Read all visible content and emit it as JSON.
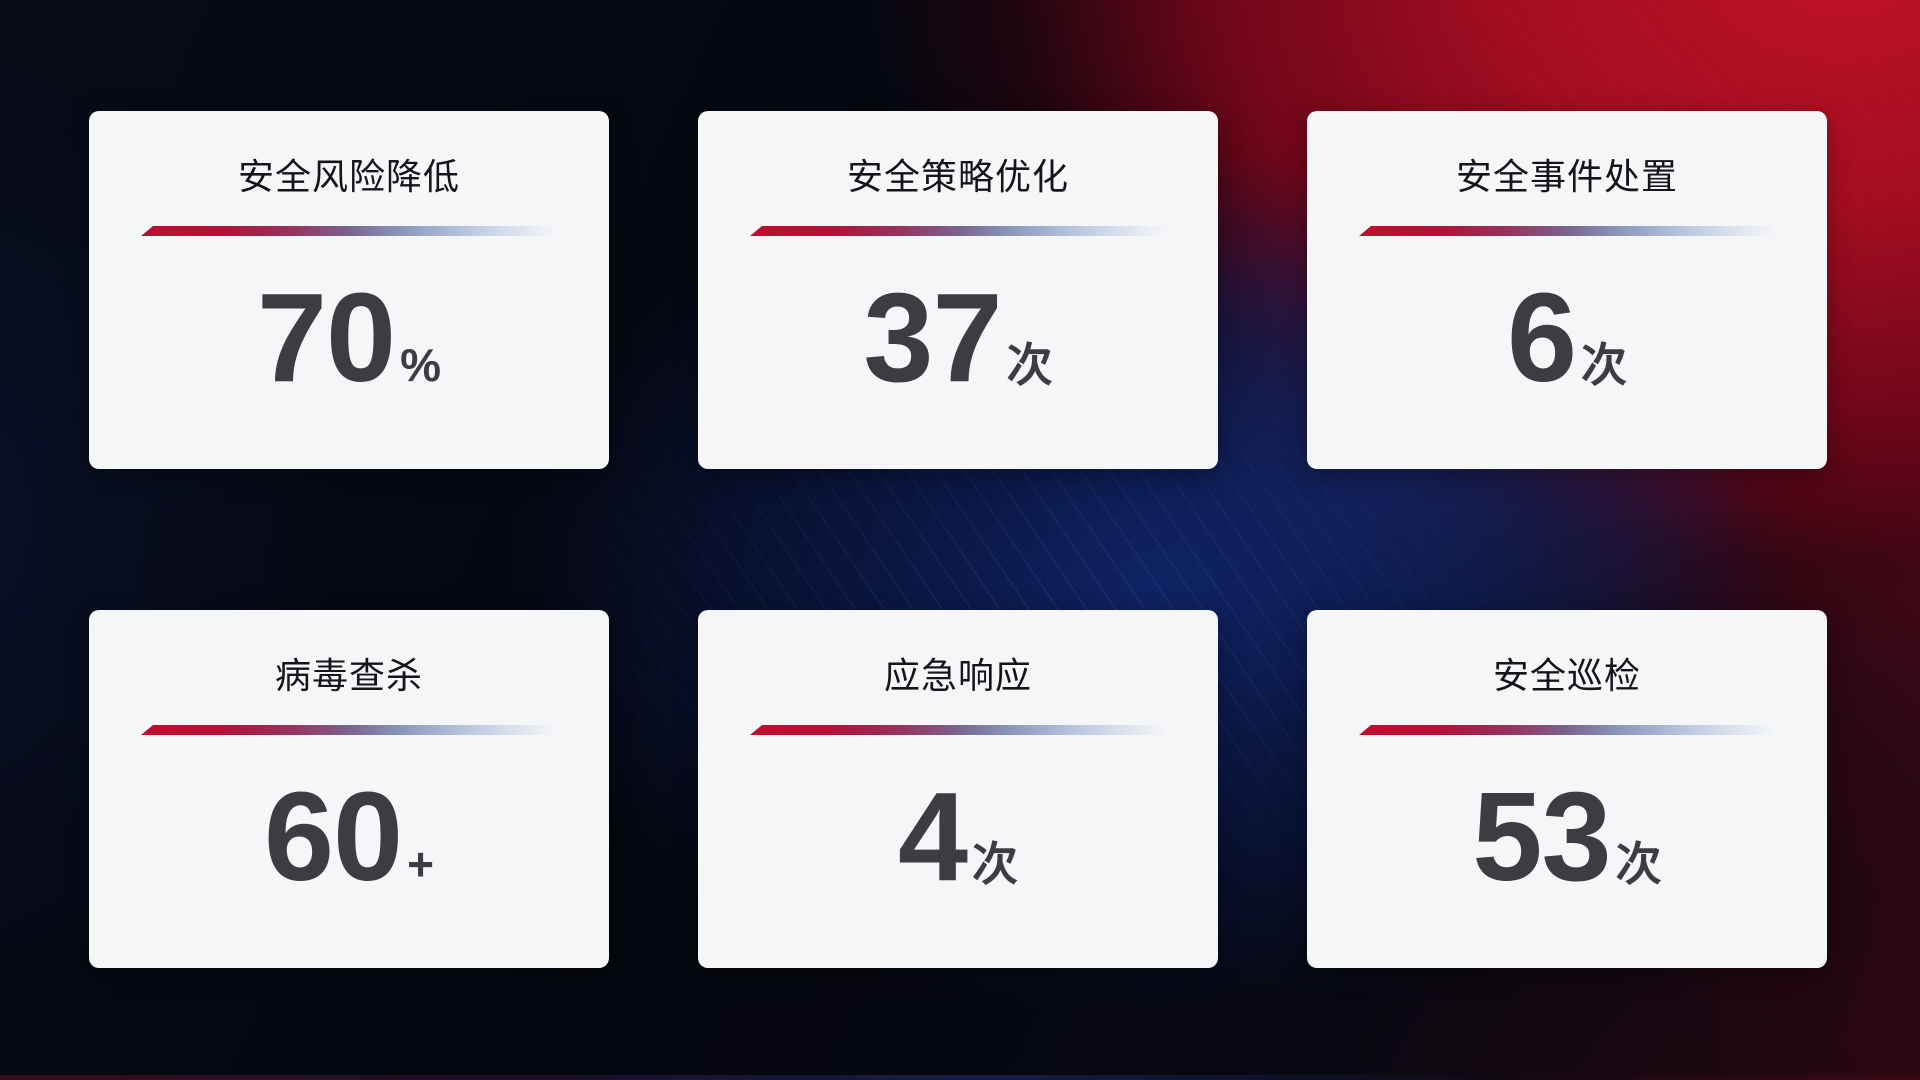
{
  "page": {
    "kind": "security-operations-kpi-dashboard",
    "background_colors": {
      "base_dark": "#05070f",
      "red_glow": "#b01022",
      "blue_glow": "#102670",
      "card_background": "#f5f6f8",
      "divider_start": "#c00e2d",
      "divider_end": "#d3dcea",
      "title_text": "#141419",
      "value_text": "#3c3d43"
    }
  },
  "cards": [
    {
      "title": "安全风险降低",
      "value": "70",
      "unit": "%"
    },
    {
      "title": "安全策略优化",
      "value": "37",
      "unit": "次"
    },
    {
      "title": "安全事件处置",
      "value": "6",
      "unit": "次"
    },
    {
      "title": "病毒查杀",
      "value": "60",
      "unit": "+"
    },
    {
      "title": "应急响应",
      "value": "4",
      "unit": "次"
    },
    {
      "title": "安全巡检",
      "value": "53",
      "unit": "次"
    }
  ],
  "chart_data": {
    "type": "table",
    "title": "",
    "categories": [
      "安全风险降低",
      "安全策略优化",
      "安全事件处置",
      "病毒查杀",
      "应急响应",
      "安全巡检"
    ],
    "values": [
      70,
      37,
      6,
      60,
      4,
      53
    ],
    "units": [
      "%",
      "次",
      "次",
      "+",
      "次",
      "次"
    ],
    "layout": "2 rows x 3 columns of KPI stat cards on dark red/blue gradient background"
  }
}
